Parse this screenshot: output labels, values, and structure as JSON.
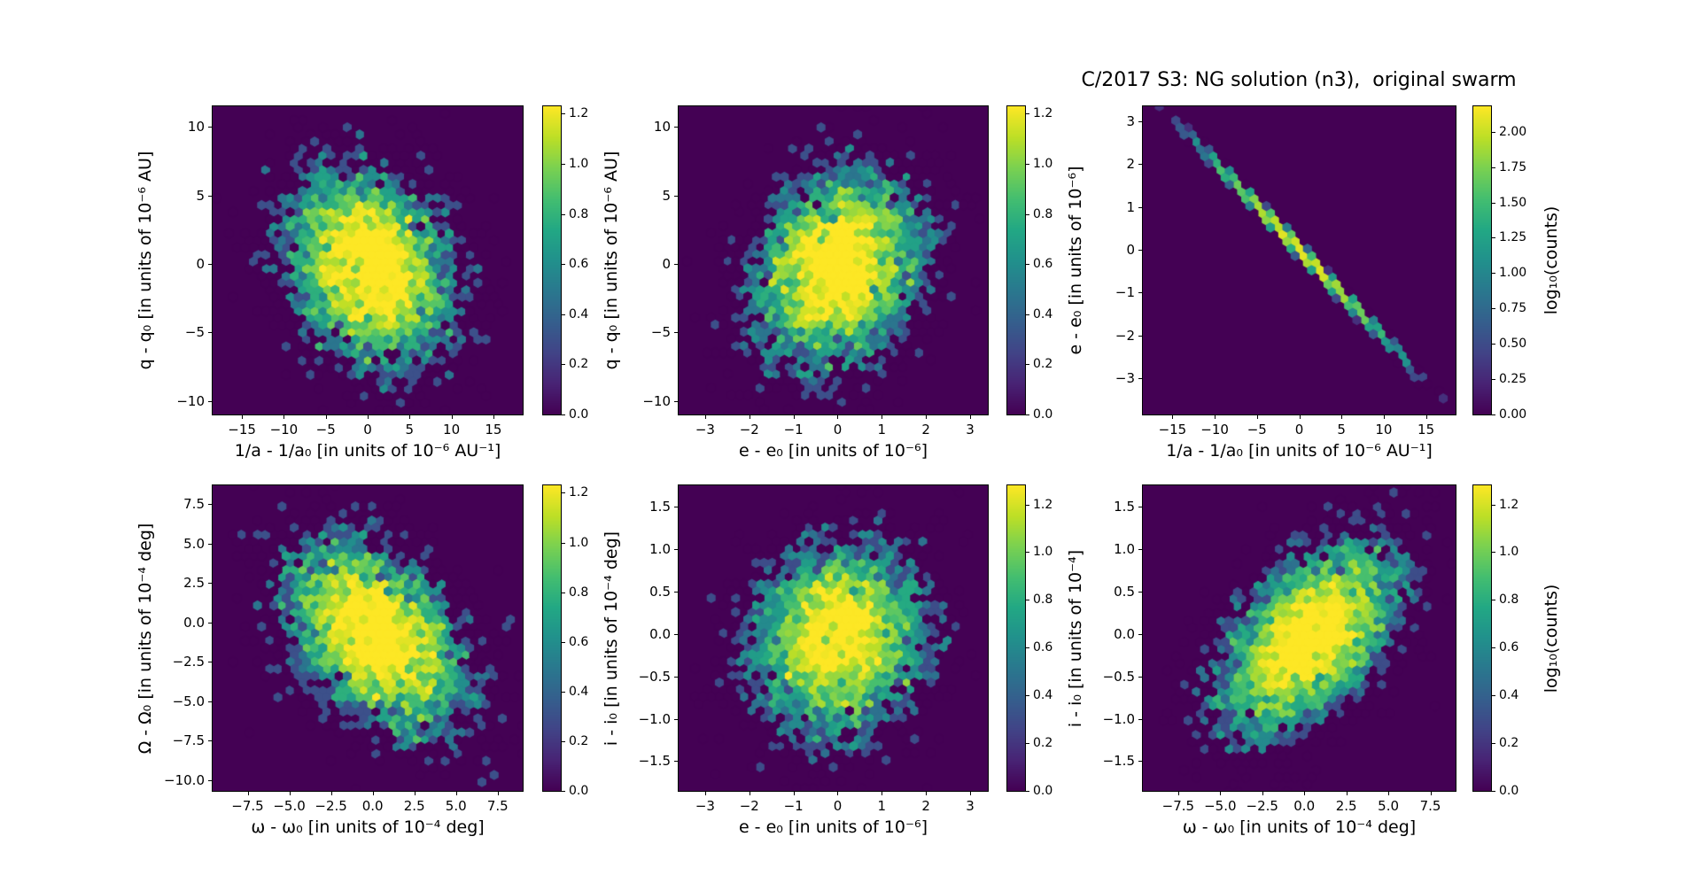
{
  "chart_data": {
    "type": "hexbin",
    "title": "C/2017 S3: NG solution (n3),  original swarm",
    "colormap": "viridis",
    "plot_background_color": "#440154",
    "figure_background_color": "#ffffff",
    "grid": false,
    "layout_hint": "2 rows x 3 columns of hexbin density panels, each with its own vertical viridis colorbar; third colorbar of each row carries the label log10(counts)",
    "colorbar_label": "log₁₀(counts)",
    "panels": [
      {
        "id": "q-vs-inva",
        "row": 0,
        "col": 0,
        "xlabel": "1/a - 1/a₀ [in units of 10⁻⁶ AU⁻¹]",
        "ylabel": "q - q₀ [in units of 10⁻⁶ AU]",
        "xlim": [
          -18.5,
          18.5
        ],
        "ylim": [
          -11.0,
          11.5
        ],
        "xticks": {
          "values": [
            -15,
            -10,
            -5,
            0,
            5,
            10,
            15
          ],
          "labels": [
            "−15",
            "−10",
            "−5",
            "0",
            "5",
            "10",
            "15"
          ]
        },
        "yticks": {
          "values": [
            10,
            5,
            0,
            -5,
            -10
          ],
          "labels": [
            "10",
            "5",
            "0",
            "−5",
            "−10"
          ]
        },
        "colorbar": {
          "vmax": 1.23,
          "tick_values": [
            0.0,
            0.2,
            0.4,
            0.6,
            0.8,
            1.0,
            1.2
          ],
          "tick_labels": [
            "0.0",
            "0.2",
            "0.4",
            "0.6",
            "0.8",
            "1.0",
            "1.2"
          ],
          "label": ""
        },
        "distribution": {
          "kind": "gaussian",
          "n": 5000,
          "center": [
            0.3,
            -0.3
          ],
          "sigma": [
            4.8,
            3.5
          ],
          "rho": -0.22,
          "seed": 101
        }
      },
      {
        "id": "q-vs-e",
        "row": 0,
        "col": 1,
        "xlabel": "e - e₀ [in units of 10⁻⁶]",
        "ylabel": "q - q₀ [in units of 10⁻⁶ AU]",
        "xlim": [
          -3.6,
          3.4
        ],
        "ylim": [
          -11.0,
          11.5
        ],
        "xticks": {
          "values": [
            -3,
            -2,
            -1,
            0,
            1,
            2,
            3
          ],
          "labels": [
            "−3",
            "−2",
            "−1",
            "0",
            "1",
            "2",
            "3"
          ]
        },
        "yticks": {
          "values": [
            10,
            5,
            0,
            -5,
            -10
          ],
          "labels": [
            "10",
            "5",
            "0",
            "−5",
            "−10"
          ]
        },
        "colorbar": {
          "vmax": 1.23,
          "tick_values": [
            0.0,
            0.2,
            0.4,
            0.6,
            0.8,
            1.0,
            1.2
          ],
          "tick_labels": [
            "0.0",
            "0.2",
            "0.4",
            "0.6",
            "0.8",
            "1.0",
            "1.2"
          ],
          "label": ""
        },
        "distribution": {
          "kind": "gaussian",
          "n": 5000,
          "center": [
            0.0,
            -0.3
          ],
          "sigma": [
            0.95,
            3.5
          ],
          "rho": 0.22,
          "seed": 202
        }
      },
      {
        "id": "e-vs-inva",
        "row": 0,
        "col": 2,
        "xlabel": "1/a - 1/a₀ [in units of 10⁻⁶ AU⁻¹]",
        "ylabel": "e - e₀ [in units of 10⁻⁶]",
        "xlim": [
          -18.5,
          18.5
        ],
        "ylim": [
          -3.85,
          3.35
        ],
        "xticks": {
          "values": [
            -15,
            -10,
            -5,
            0,
            5,
            10,
            15
          ],
          "labels": [
            "−15",
            "−10",
            "−5",
            "0",
            "5",
            "10",
            "15"
          ]
        },
        "yticks": {
          "values": [
            3,
            2,
            1,
            0,
            -1,
            -2,
            -3
          ],
          "labels": [
            "3",
            "2",
            "1",
            "0",
            "−1",
            "−2",
            "−3"
          ]
        },
        "colorbar": {
          "vmax": 2.18,
          "tick_values": [
            0.0,
            0.25,
            0.5,
            0.75,
            1.0,
            1.25,
            1.5,
            1.75,
            2.0
          ],
          "tick_labels": [
            "0.00",
            "0.25",
            "0.50",
            "0.75",
            "1.00",
            "1.25",
            "1.50",
            "1.75",
            "2.00"
          ],
          "label": "log₁₀(counts)"
        },
        "distribution": {
          "kind": "line",
          "n": 2600,
          "slope": -0.206,
          "sigma_x": 5.3,
          "noise": 0.05,
          "seed": 303
        }
      },
      {
        "id": "Omega-vs-omega",
        "row": 1,
        "col": 0,
        "xlabel": "ω - ω₀ [in units of 10⁻⁴ deg]",
        "ylabel": "Ω - Ω₀ [in units of 10⁻⁴ deg]",
        "xlim": [
          -9.6,
          9.0
        ],
        "ylim": [
          -10.7,
          8.7
        ],
        "xticks": {
          "values": [
            -7.5,
            -5.0,
            -2.5,
            0.0,
            2.5,
            5.0,
            7.5
          ],
          "labels": [
            "−7.5",
            "−5.0",
            "−2.5",
            "0.0",
            "2.5",
            "5.0",
            "7.5"
          ]
        },
        "yticks": {
          "values": [
            7.5,
            5.0,
            2.5,
            0.0,
            -2.5,
            -5.0,
            -7.5,
            -10.0
          ],
          "labels": [
            "7.5",
            "5.0",
            "2.5",
            "0.0",
            "−2.5",
            "−5.0",
            "−7.5",
            "−10.0"
          ]
        },
        "colorbar": {
          "vmax": 1.23,
          "tick_values": [
            0.0,
            0.2,
            0.4,
            0.6,
            0.8,
            1.0,
            1.2
          ],
          "tick_labels": [
            "0.0",
            "0.2",
            "0.4",
            "0.6",
            "0.8",
            "1.0",
            "1.2"
          ],
          "label": ""
        },
        "distribution": {
          "kind": "gaussian",
          "n": 5000,
          "center": [
            0.2,
            -0.8
          ],
          "sigma": [
            2.7,
            3.0
          ],
          "rho": -0.42,
          "seed": 404
        }
      },
      {
        "id": "i-vs-e",
        "row": 1,
        "col": 1,
        "xlabel": "e - e₀ [in units of 10⁻⁶]",
        "ylabel": "i - i₀ [in units of 10⁻⁴ deg]",
        "xlim": [
          -3.6,
          3.4
        ],
        "ylim": [
          -1.85,
          1.75
        ],
        "xticks": {
          "values": [
            -3,
            -2,
            -1,
            0,
            1,
            2,
            3
          ],
          "labels": [
            "−3",
            "−2",
            "−1",
            "0",
            "1",
            "2",
            "3"
          ]
        },
        "yticks": {
          "values": [
            1.5,
            1.0,
            0.5,
            0.0,
            -0.5,
            -1.0,
            -1.5
          ],
          "labels": [
            "1.5",
            "1.0",
            "0.5",
            "0.0",
            "−0.5",
            "−1.0",
            "−1.5"
          ]
        },
        "colorbar": {
          "vmax": 1.28,
          "tick_values": [
            0.0,
            0.2,
            0.4,
            0.6,
            0.8,
            1.0,
            1.2
          ],
          "tick_labels": [
            "0.0",
            "0.2",
            "0.4",
            "0.6",
            "0.8",
            "1.0",
            "1.2"
          ],
          "label": ""
        },
        "distribution": {
          "kind": "gaussian",
          "n": 5000,
          "center": [
            0.0,
            -0.05
          ],
          "sigma": [
            0.95,
            0.55
          ],
          "rho": 0.08,
          "seed": 505
        }
      },
      {
        "id": "i-vs-omega",
        "row": 1,
        "col": 2,
        "xlabel": "ω - ω₀ [in units of 10⁻⁴ deg]",
        "ylabel": "i - i₀ [in units of 10⁻⁴]",
        "xlim": [
          -9.6,
          9.0
        ],
        "ylim": [
          -1.85,
          1.75
        ],
        "xticks": {
          "values": [
            -7.5,
            -5.0,
            -2.5,
            0.0,
            2.5,
            5.0,
            7.5
          ],
          "labels": [
            "−7.5",
            "−5.0",
            "−2.5",
            "0.0",
            "2.5",
            "5.0",
            "7.5"
          ]
        },
        "yticks": {
          "values": [
            1.5,
            1.0,
            0.5,
            0.0,
            -0.5,
            -1.0,
            -1.5
          ],
          "labels": [
            "1.5",
            "1.0",
            "0.5",
            "0.0",
            "−0.5",
            "−1.0",
            "−1.5"
          ]
        },
        "colorbar": {
          "vmax": 1.28,
          "tick_values": [
            0.0,
            0.2,
            0.4,
            0.6,
            0.8,
            1.0,
            1.2
          ],
          "tick_labels": [
            "0.0",
            "0.2",
            "0.4",
            "0.6",
            "0.8",
            "1.0",
            "1.2"
          ],
          "label": "log₁₀(counts)"
        },
        "distribution": {
          "kind": "gaussian",
          "n": 5000,
          "center": [
            0.3,
            -0.05
          ],
          "sigma": [
            2.6,
            0.55
          ],
          "rho": 0.5,
          "seed": 606
        }
      }
    ]
  }
}
